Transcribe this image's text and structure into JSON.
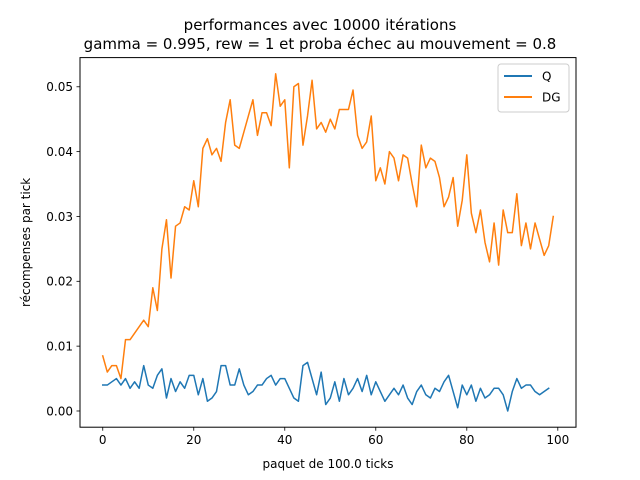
{
  "chart_data": {
    "type": "line",
    "title": "performances avec 10000 itérations",
    "subtitle": "gamma = 0.995, rew = 1 et proba échec au mouvement = 0.8",
    "xlabel": "paquet de 100.0 ticks",
    "ylabel": "récompenses par tick",
    "xlim": [
      -5,
      104
    ],
    "ylim": [
      -0.0025,
      0.0545
    ],
    "xticks": [
      "0",
      "20",
      "40",
      "60",
      "80",
      "100"
    ],
    "yticks": [
      "0.00",
      "0.01",
      "0.02",
      "0.03",
      "0.04",
      "0.05"
    ],
    "grid": false,
    "legend_position": "top-right",
    "series": [
      {
        "name": "Q",
        "color": "#1f77b4",
        "values": [
          0.004,
          0.004,
          0.0045,
          0.005,
          0.004,
          0.005,
          0.0035,
          0.0045,
          0.0035,
          0.007,
          0.004,
          0.0035,
          0.0055,
          0.0065,
          0.002,
          0.005,
          0.003,
          0.0045,
          0.0035,
          0.0055,
          0.0055,
          0.0025,
          0.005,
          0.0015,
          0.002,
          0.003,
          0.007,
          0.007,
          0.004,
          0.004,
          0.0065,
          0.004,
          0.0025,
          0.003,
          0.004,
          0.004,
          0.005,
          0.0055,
          0.004,
          0.005,
          0.005,
          0.0035,
          0.002,
          0.0015,
          0.007,
          0.0075,
          0.005,
          0.0025,
          0.006,
          0.001,
          0.002,
          0.0045,
          0.0015,
          0.005,
          0.0025,
          0.0035,
          0.005,
          0.003,
          0.0055,
          0.0025,
          0.0045,
          0.003,
          0.0015,
          0.0025,
          0.0035,
          0.0025,
          0.004,
          0.002,
          0.001,
          0.003,
          0.004,
          0.0025,
          0.002,
          0.0035,
          0.003,
          0.0045,
          0.0055,
          0.003,
          0.0005,
          0.004,
          0.0025,
          0.004,
          0.0015,
          0.0035,
          0.002,
          0.0025,
          0.0035,
          0.0035,
          0.0025,
          0.0,
          0.003,
          0.005,
          0.0035,
          0.004,
          0.004,
          0.003,
          0.0025,
          0.003,
          0.0035
        ]
      },
      {
        "name": "DG",
        "color": "#ff7f0e",
        "values": [
          0.0085,
          0.006,
          0.007,
          0.007,
          0.005,
          0.011,
          0.011,
          0.012,
          0.013,
          0.014,
          0.013,
          0.019,
          0.0155,
          0.025,
          0.0295,
          0.0205,
          0.0285,
          0.029,
          0.0315,
          0.031,
          0.0355,
          0.0315,
          0.0405,
          0.042,
          0.0395,
          0.0405,
          0.0385,
          0.0445,
          0.048,
          0.041,
          0.0405,
          0.043,
          0.0455,
          0.048,
          0.0425,
          0.046,
          0.046,
          0.044,
          0.052,
          0.047,
          0.048,
          0.0375,
          0.05,
          0.0505,
          0.041,
          0.0455,
          0.051,
          0.0435,
          0.0445,
          0.043,
          0.045,
          0.0435,
          0.0465,
          0.0465,
          0.0465,
          0.0495,
          0.0425,
          0.0405,
          0.0415,
          0.0455,
          0.0355,
          0.0375,
          0.035,
          0.04,
          0.039,
          0.0355,
          0.0395,
          0.039,
          0.035,
          0.0315,
          0.041,
          0.0375,
          0.039,
          0.0385,
          0.036,
          0.0315,
          0.033,
          0.036,
          0.0285,
          0.0325,
          0.0395,
          0.0305,
          0.0275,
          0.031,
          0.026,
          0.023,
          0.029,
          0.0225,
          0.031,
          0.0275,
          0.0275,
          0.0335,
          0.0255,
          0.029,
          0.025,
          0.029,
          0.0265,
          0.024,
          0.0255,
          0.03
        ]
      }
    ]
  }
}
